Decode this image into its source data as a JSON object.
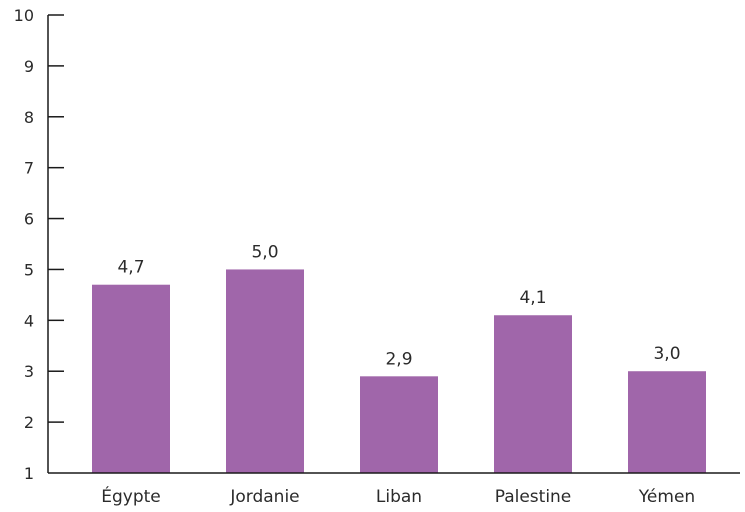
{
  "chart_data": {
    "type": "bar",
    "title": "",
    "xlabel": "",
    "ylabel": "",
    "categories": [
      "Égypte",
      "Jordanie",
      "Liban",
      "Palestine",
      "Yémen"
    ],
    "values": [
      4.7,
      5.0,
      2.9,
      4.1,
      3.0
    ],
    "value_labels": [
      "4,7",
      "5,0",
      "2,9",
      "4,1",
      "3,0"
    ],
    "ylim": [
      1,
      10
    ],
    "yticks": [
      1,
      2,
      3,
      4,
      5,
      6,
      7,
      8,
      9,
      10
    ],
    "ytick_labels": [
      "1",
      "2",
      "3",
      "4",
      "5",
      "6",
      "7",
      "8",
      "9",
      "10"
    ],
    "grid": false,
    "legend": "none",
    "bar_color": "#a066aa"
  }
}
